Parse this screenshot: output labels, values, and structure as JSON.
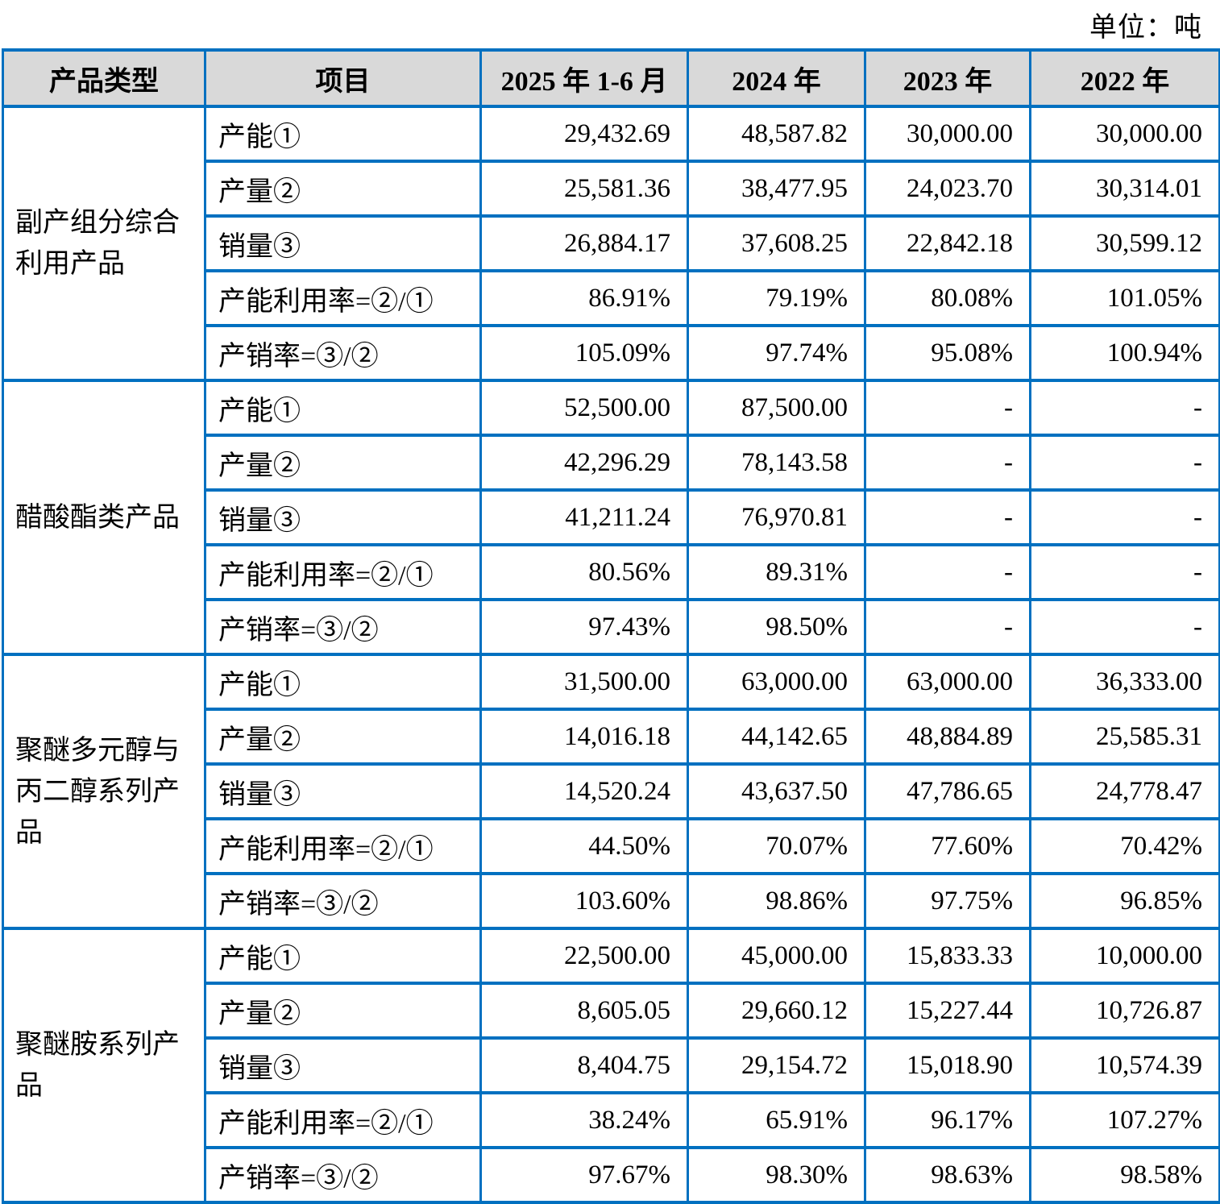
{
  "meta": {
    "unit_label": "单位：吨"
  },
  "colors": {
    "border": "#0070C0",
    "header_bg": "#D9D9D9",
    "text": "#000000"
  },
  "table": {
    "headers": [
      "产品类型",
      "项目",
      "2025 年 1-6 月",
      "2024 年",
      "2023 年",
      "2022 年"
    ],
    "groups": [
      {
        "product": "副产组分综合利用产品",
        "rows": [
          {
            "item": "产能①",
            "values": [
              "29,432.69",
              "48,587.82",
              "30,000.00",
              "30,000.00"
            ]
          },
          {
            "item": "产量②",
            "values": [
              "25,581.36",
              "38,477.95",
              "24,023.70",
              "30,314.01"
            ]
          },
          {
            "item": "销量③",
            "values": [
              "26,884.17",
              "37,608.25",
              "22,842.18",
              "30,599.12"
            ]
          },
          {
            "item": "产能利用率=②/①",
            "values": [
              "86.91%",
              "79.19%",
              "80.08%",
              "101.05%"
            ]
          },
          {
            "item": "产销率=③/②",
            "values": [
              "105.09%",
              "97.74%",
              "95.08%",
              "100.94%"
            ]
          }
        ]
      },
      {
        "product": "醋酸酯类产品",
        "rows": [
          {
            "item": "产能①",
            "values": [
              "52,500.00",
              "87,500.00",
              "-",
              "-"
            ]
          },
          {
            "item": "产量②",
            "values": [
              "42,296.29",
              "78,143.58",
              "-",
              "-"
            ]
          },
          {
            "item": "销量③",
            "values": [
              "41,211.24",
              "76,970.81",
              "-",
              "-"
            ]
          },
          {
            "item": "产能利用率=②/①",
            "values": [
              "80.56%",
              "89.31%",
              "-",
              "-"
            ]
          },
          {
            "item": "产销率=③/②",
            "values": [
              "97.43%",
              "98.50%",
              "-",
              "-"
            ]
          }
        ]
      },
      {
        "product": "聚醚多元醇与丙二醇系列产品",
        "rows": [
          {
            "item": "产能①",
            "values": [
              "31,500.00",
              "63,000.00",
              "63,000.00",
              "36,333.00"
            ]
          },
          {
            "item": "产量②",
            "values": [
              "14,016.18",
              "44,142.65",
              "48,884.89",
              "25,585.31"
            ]
          },
          {
            "item": "销量③",
            "values": [
              "14,520.24",
              "43,637.50",
              "47,786.65",
              "24,778.47"
            ]
          },
          {
            "item": "产能利用率=②/①",
            "values": [
              "44.50%",
              "70.07%",
              "77.60%",
              "70.42%"
            ]
          },
          {
            "item": "产销率=③/②",
            "values": [
              "103.60%",
              "98.86%",
              "97.75%",
              "96.85%"
            ]
          }
        ]
      },
      {
        "product": "聚醚胺系列产品",
        "rows": [
          {
            "item": "产能①",
            "values": [
              "22,500.00",
              "45,000.00",
              "15,833.33",
              "10,000.00"
            ]
          },
          {
            "item": "产量②",
            "values": [
              "8,605.05",
              "29,660.12",
              "15,227.44",
              "10,726.87"
            ]
          },
          {
            "item": "销量③",
            "values": [
              "8,404.75",
              "29,154.72",
              "15,018.90",
              "10,574.39"
            ]
          },
          {
            "item": "产能利用率=②/①",
            "values": [
              "38.24%",
              "65.91%",
              "96.17%",
              "107.27%"
            ]
          },
          {
            "item": "产销率=③/②",
            "values": [
              "97.67%",
              "98.30%",
              "98.63%",
              "98.58%"
            ]
          }
        ]
      }
    ]
  }
}
